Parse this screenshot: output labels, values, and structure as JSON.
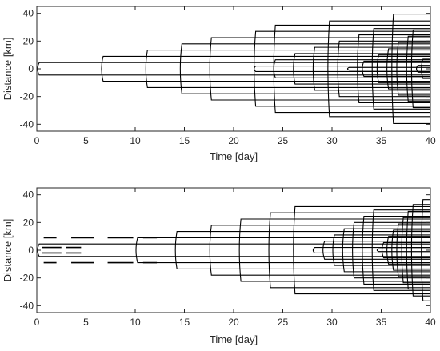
{
  "chart_data": [
    {
      "type": "line",
      "panel": "top",
      "xlabel": "Time [day]",
      "ylabel": "Distance [km]",
      "xlim": [
        0,
        40
      ],
      "ylim": [
        -45,
        45
      ],
      "xticks": [
        0,
        5,
        10,
        15,
        20,
        25,
        30,
        35,
        40
      ],
      "yticks": [
        40,
        20,
        0,
        -20,
        -40
      ],
      "grid": false,
      "line_color": "#000000",
      "series": [
        {
          "t0": 0.0,
          "half_width": 4.5,
          "style": "solid"
        },
        {
          "t0": 6.5,
          "half_width": 9.0,
          "style": "solid"
        },
        {
          "t0": 11.0,
          "half_width": 13.5,
          "style": "solid"
        },
        {
          "t0": 14.5,
          "half_width": 18.0,
          "style": "solid"
        },
        {
          "t0": 17.5,
          "half_width": 22.5,
          "style": "solid"
        },
        {
          "t0": 22.0,
          "half_width": 2.0,
          "style": "solid"
        },
        {
          "t0": 22.0,
          "half_width": 27.0,
          "style": "solid"
        },
        {
          "t0": 24.0,
          "half_width": 6.5,
          "style": "solid"
        },
        {
          "t0": 24.0,
          "half_width": 31.5,
          "style": "solid"
        },
        {
          "t0": 26.0,
          "half_width": 11.0,
          "style": "solid"
        },
        {
          "t0": 28.0,
          "half_width": 15.5,
          "style": "solid"
        },
        {
          "t0": 29.5,
          "half_width": 34.5,
          "style": "solid"
        },
        {
          "t0": 30.5,
          "half_width": 20.0,
          "style": "solid"
        },
        {
          "t0": 31.5,
          "half_width": 1.0,
          "style": "solid"
        },
        {
          "t0": 32.5,
          "half_width": 24.5,
          "style": "solid"
        },
        {
          "t0": 33.0,
          "half_width": 5.5,
          "style": "solid"
        },
        {
          "t0": 34.0,
          "half_width": 29.0,
          "style": "solid"
        },
        {
          "t0": 34.5,
          "half_width": 10.0,
          "style": "solid"
        },
        {
          "t0": 35.5,
          "half_width": 14.5,
          "style": "solid"
        },
        {
          "t0": 36.0,
          "half_width": 39.5,
          "style": "solid"
        },
        {
          "t0": 36.5,
          "half_width": 19.0,
          "style": "solid"
        },
        {
          "t0": 37.5,
          "half_width": 23.5,
          "style": "solid"
        },
        {
          "t0": 38.0,
          "half_width": 28.0,
          "style": "solid"
        },
        {
          "t0": 38.5,
          "half_width": 2.5,
          "style": "solid"
        },
        {
          "t0": 39.0,
          "half_width": 7.0,
          "style": "solid"
        }
      ]
    },
    {
      "type": "line",
      "panel": "bottom",
      "xlabel": "Time [day]",
      "ylabel": "Distance [km]",
      "xlim": [
        0,
        40
      ],
      "ylim": [
        -45,
        45
      ],
      "xticks": [
        0,
        5,
        10,
        15,
        20,
        25,
        30,
        35,
        40
      ],
      "yticks": [
        40,
        20,
        0,
        -20,
        -40
      ],
      "grid": false,
      "line_color": "#000000",
      "series": [
        {
          "t0": 0.0,
          "half_width": 4.5,
          "style": "solid"
        },
        {
          "t0": 0.0,
          "half_width": 9.0,
          "style": "dashed",
          "segments": [
            [
              0.7,
              2.0
            ],
            [
              3.5,
              5.8
            ],
            [
              7.2,
              9.8
            ],
            [
              10.8,
              12.2
            ]
          ]
        },
        {
          "t0": 0.0,
          "half_width": 2.0,
          "style": "dashed",
          "segments": [
            [
              0.5,
              2.5
            ],
            [
              3.0,
              4.5
            ]
          ]
        },
        {
          "t0": 10.0,
          "half_width": 9.0,
          "style": "solid"
        },
        {
          "t0": 14.0,
          "half_width": 13.5,
          "style": "solid"
        },
        {
          "t0": 17.5,
          "half_width": 18.0,
          "style": "solid"
        },
        {
          "t0": 20.5,
          "half_width": 22.5,
          "style": "solid"
        },
        {
          "t0": 23.5,
          "half_width": 27.0,
          "style": "solid"
        },
        {
          "t0": 26.0,
          "half_width": 31.5,
          "style": "solid"
        },
        {
          "t0": 28.0,
          "half_width": 2.0,
          "style": "solid"
        },
        {
          "t0": 29.0,
          "half_width": 6.5,
          "style": "solid"
        },
        {
          "t0": 30.0,
          "half_width": 11.0,
          "style": "solid"
        },
        {
          "t0": 31.0,
          "half_width": 15.5,
          "style": "solid"
        },
        {
          "t0": 32.0,
          "half_width": 20.0,
          "style": "solid"
        },
        {
          "t0": 33.0,
          "half_width": 24.5,
          "style": "solid"
        },
        {
          "t0": 34.0,
          "half_width": 29.0,
          "style": "solid"
        },
        {
          "t0": 34.5,
          "half_width": 1.0,
          "style": "solid"
        },
        {
          "t0": 35.0,
          "half_width": 5.5,
          "style": "solid"
        },
        {
          "t0": 35.5,
          "half_width": 10.0,
          "style": "solid"
        },
        {
          "t0": 36.0,
          "half_width": 14.5,
          "style": "solid"
        },
        {
          "t0": 36.5,
          "half_width": 19.0,
          "style": "solid"
        },
        {
          "t0": 37.0,
          "half_width": 23.5,
          "style": "solid"
        },
        {
          "t0": 37.5,
          "half_width": 28.0,
          "style": "solid"
        },
        {
          "t0": 38.0,
          "half_width": 33.0,
          "style": "solid"
        },
        {
          "t0": 39.0,
          "half_width": 36.5,
          "style": "solid"
        }
      ]
    }
  ]
}
